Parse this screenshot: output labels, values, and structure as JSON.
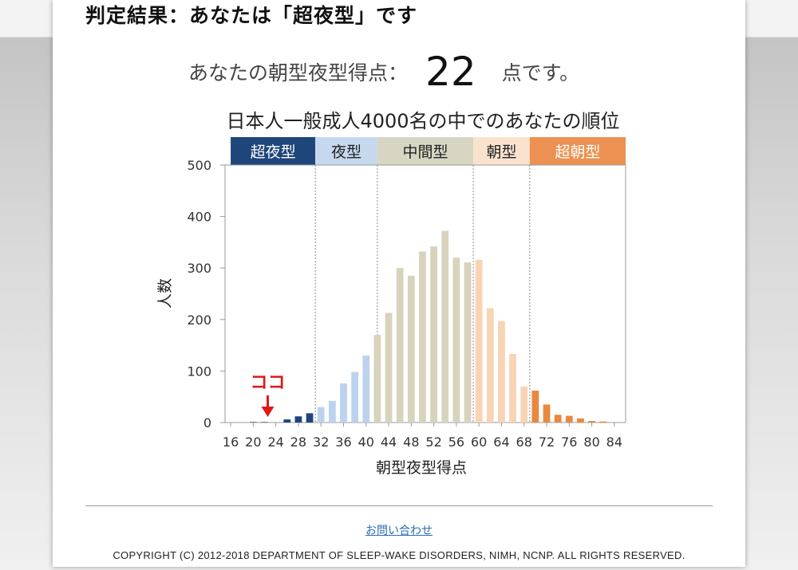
{
  "result": {
    "heading": "判定結果：あなたは「超夜型」です",
    "score_label": "あなたの朝型夜型得点：",
    "score_value": "22",
    "score_suffix": "点です。"
  },
  "chart_data": {
    "type": "bar",
    "title": "日本人一般成人4000名の中でのあなたの順位",
    "xlabel": "朝型夜型得点",
    "ylabel": "人数",
    "ylim": [
      0,
      500
    ],
    "yticks": [
      0,
      100,
      200,
      300,
      400,
      500
    ],
    "xticks": [
      16,
      20,
      24,
      28,
      32,
      36,
      40,
      44,
      48,
      52,
      56,
      60,
      64,
      68,
      72,
      76,
      80,
      84
    ],
    "x": [
      16,
      18,
      20,
      22,
      24,
      26,
      28,
      30,
      32,
      34,
      36,
      38,
      40,
      42,
      44,
      46,
      48,
      50,
      52,
      54,
      56,
      58,
      60,
      62,
      64,
      66,
      68,
      70,
      72,
      74,
      76,
      78,
      80,
      82,
      84
    ],
    "values": [
      0,
      0,
      1,
      1,
      0,
      6,
      12,
      18,
      30,
      42,
      76,
      98,
      130,
      170,
      213,
      300,
      285,
      332,
      342,
      372,
      320,
      311,
      316,
      222,
      197,
      133,
      70,
      62,
      35,
      15,
      13,
      8,
      3,
      2,
      0
    ],
    "bands": [
      {
        "label": "超夜型",
        "from": 16,
        "to": 31,
        "header_color": "#1f467b",
        "bar_color": "#1f467b",
        "text_color": "#ffffff"
      },
      {
        "label": "夜型",
        "from": 31,
        "to": 42,
        "header_color": "#c5d8ee",
        "bar_color": "#bcd2ee",
        "text_color": "#222222"
      },
      {
        "label": "中間型",
        "from": 42,
        "to": 59,
        "header_color": "#d8d6c2",
        "bar_color": "#d8d3bd",
        "text_color": "#222222"
      },
      {
        "label": "朝型",
        "from": 59,
        "to": 69,
        "header_color": "#f9e3cf",
        "bar_color": "#f8d4b4",
        "text_color": "#222222"
      },
      {
        "label": "超朝型",
        "from": 69,
        "to": 86,
        "header_color": "#ec9152",
        "bar_color": "#e8893f",
        "text_color": "#ffffff"
      }
    ],
    "marker": {
      "label": "ココ",
      "x": 22,
      "color": "#e01818"
    }
  },
  "footer": {
    "contact_link": "お問い合わせ",
    "copyright": "COPYRIGHT (C) 2012-2018 DEPARTMENT OF SLEEP-WAKE DISORDERS, NIMH, NCNP. ALL RIGHTS RESERVED."
  }
}
